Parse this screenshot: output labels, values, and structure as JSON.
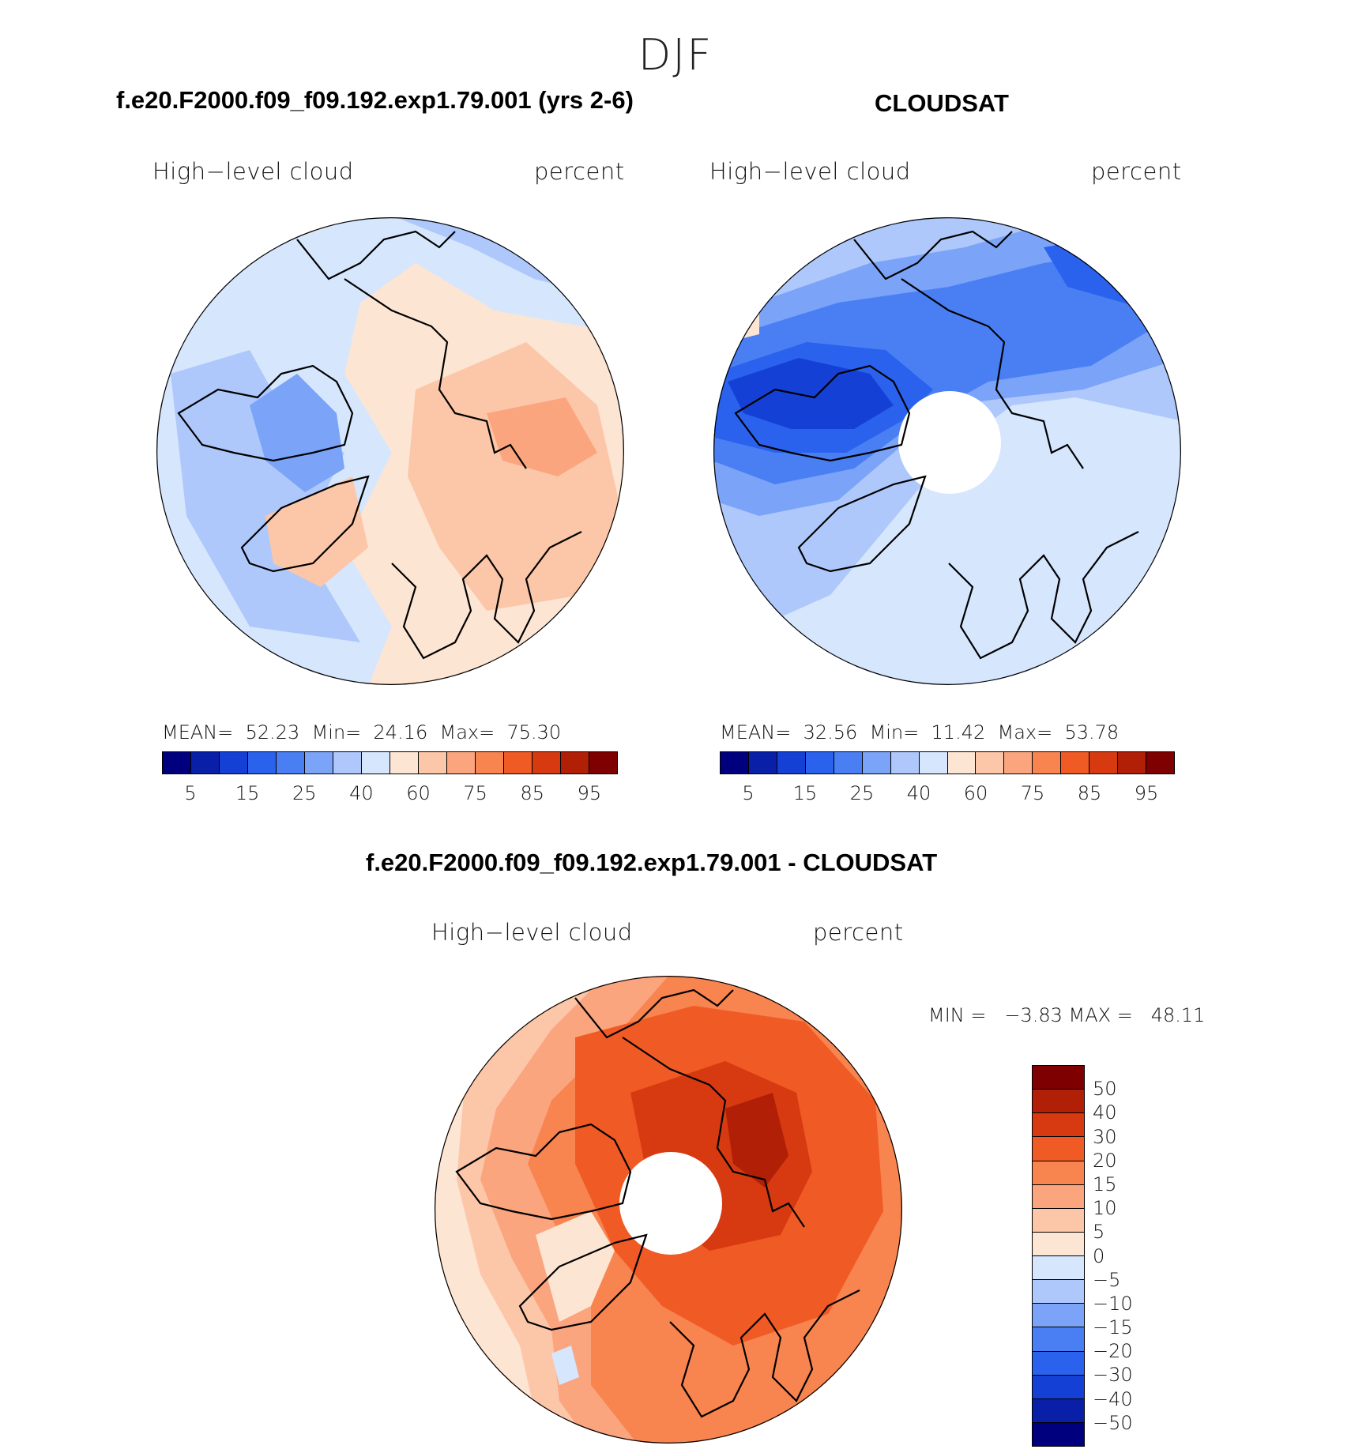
{
  "figure": {
    "season": "DJF"
  },
  "panels": {
    "model": {
      "title": "f.e20.F2000.f09_f09.192.exp1.79.001 (yrs 2-6)",
      "variable": "High−level cloud",
      "units": "percent",
      "stats": "MEAN=  52.23  Min=  24.16  Max=  75.30",
      "mean": 52.23,
      "min": 24.16,
      "max": 75.3
    },
    "obs": {
      "title": "CLOUDSAT",
      "variable": "High−level cloud",
      "units": "percent",
      "stats": "MEAN=  32.56  Min=  11.42  Max=  53.78",
      "mean": 32.56,
      "min": 11.42,
      "max": 53.78
    },
    "diff": {
      "title": "f.e20.F2000.f09_f09.192.exp1.79.001 - CLOUDSAT",
      "variable": "High−level cloud",
      "units": "percent",
      "stats": "MIN =   −3.83 MAX =   48.11",
      "min": -3.83,
      "max": 48.11
    }
  },
  "colorbar_abs": {
    "colors": [
      "#00007f",
      "#0a1fa8",
      "#1540d6",
      "#2a62ee",
      "#4a7ff4",
      "#7ba3f8",
      "#aec8fb",
      "#d6e6fd",
      "#fde5d3",
      "#fcc6a8",
      "#fba57f",
      "#f8844f",
      "#f05a25",
      "#d73a10",
      "#b21f07",
      "#7f0000"
    ],
    "labels": [
      "5",
      "15",
      "25",
      "40",
      "60",
      "75",
      "85",
      "95"
    ]
  },
  "colorbar_diff": {
    "colors": [
      "#7f0000",
      "#b21f07",
      "#d73a10",
      "#f05a25",
      "#f8844f",
      "#fba57f",
      "#fcc6a8",
      "#fde5d3",
      "#d6e6fd",
      "#aec8fb",
      "#7ba3f8",
      "#4a7ff4",
      "#2a62ee",
      "#1540d6",
      "#0a1fa8",
      "#00007f"
    ],
    "labels": [
      "50",
      "40",
      "30",
      "20",
      "15",
      "10",
      "5",
      "0",
      "−5",
      "−10",
      "−15",
      "−20",
      "−30",
      "−40",
      "−50"
    ]
  },
  "map_colors": {
    "model": {
      "base": "#fde5d3",
      "blobs": [
        "#fcc6a8",
        "#fba57f",
        "#d6e6fd",
        "#aec8fb",
        "#7ba3f8",
        "#4a7ff4"
      ]
    },
    "obs": {
      "base": "#d6e6fd",
      "blobs": [
        "#aec8fb",
        "#7ba3f8",
        "#4a7ff4",
        "#2a62ee",
        "#fde5d3",
        "#1540d6"
      ]
    },
    "diff": {
      "base": "#f8844f",
      "blobs": [
        "#fba57f",
        "#fcc6a8",
        "#fde5d3",
        "#d6e6fd",
        "#f05a25",
        "#d73a10",
        "#b21f07"
      ]
    }
  }
}
